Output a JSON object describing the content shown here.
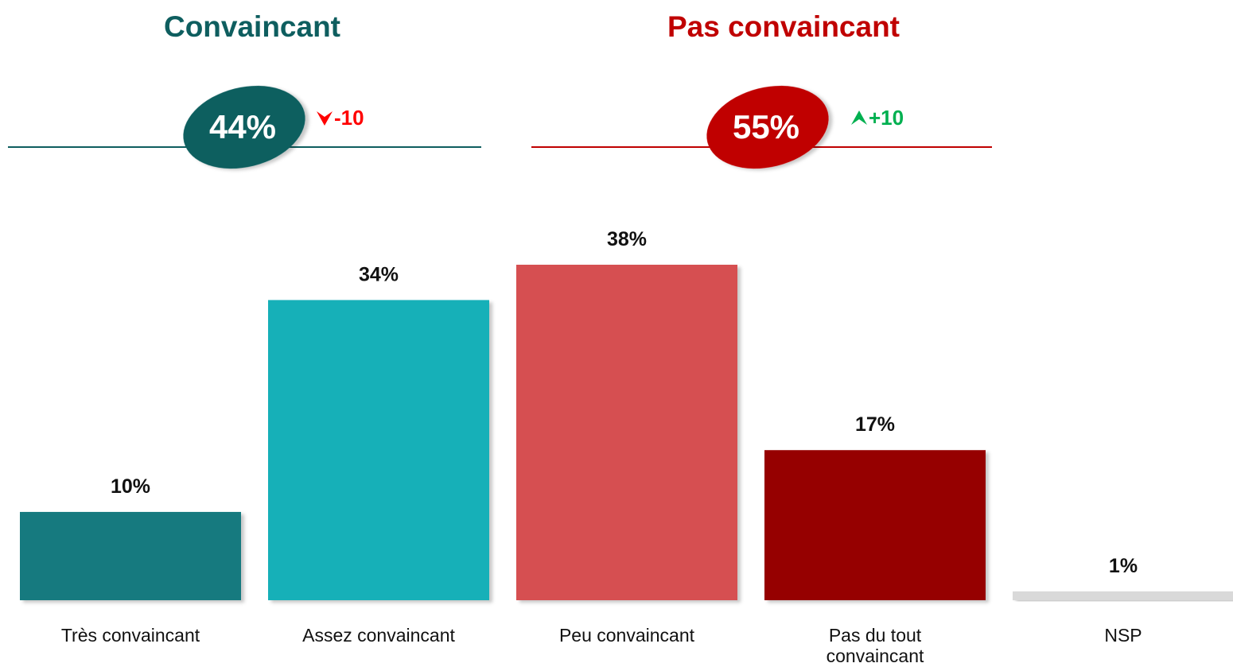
{
  "chart_data": {
    "type": "bar",
    "groups": [
      {
        "title": "Convaincant",
        "value": 44,
        "value_label": "44%",
        "change": -10,
        "change_label": "-10",
        "color": "#0e5e5f"
      },
      {
        "title": "Pas convaincant",
        "value": 55,
        "value_label": "55%",
        "change": 10,
        "change_label": "+10",
        "color": "#c00000"
      }
    ],
    "categories": [
      "Très convaincant",
      "Assez convaincant",
      "Peu convaincant",
      "Pas du tout convaincant",
      "NSP"
    ],
    "values": [
      10,
      34,
      38,
      17,
      1
    ],
    "value_labels": [
      "10%",
      "34%",
      "38%",
      "17%",
      "1%"
    ],
    "colors": [
      "#137a7f",
      "#14b0b8",
      "#d64f51",
      "#960000",
      "#d9d9d9"
    ]
  }
}
